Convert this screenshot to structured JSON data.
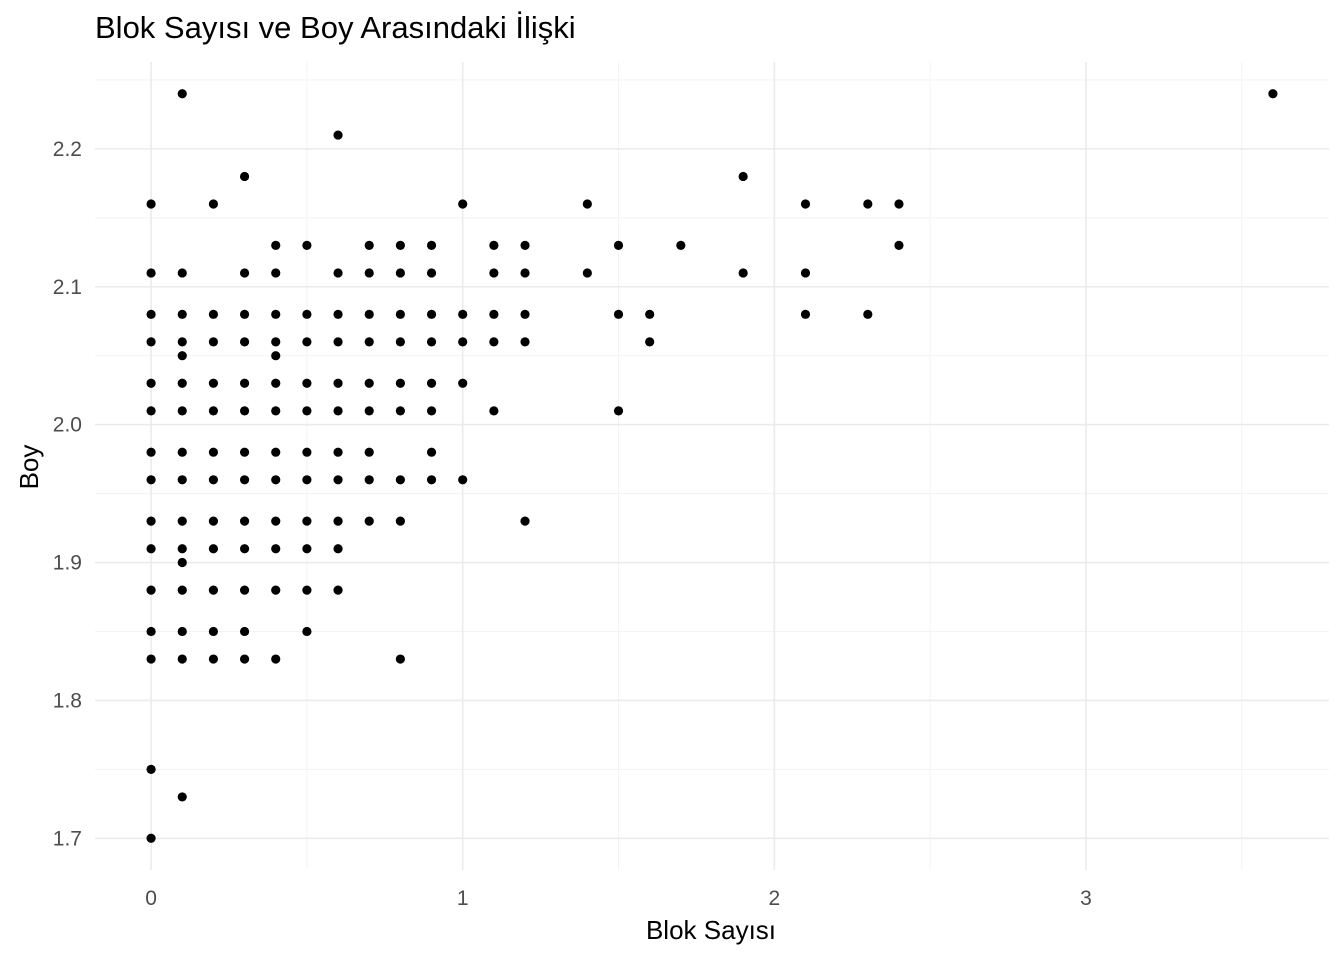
{
  "chart_data": {
    "type": "scatter",
    "title": "Blok Sayısı ve Boy Arasındaki İlişki",
    "xlabel": "Blok Sayısı",
    "ylabel": "Boy",
    "xlim": [
      -0.18,
      3.78
    ],
    "ylim": [
      1.677,
      2.263
    ],
    "x_ticks": [
      0,
      1,
      2,
      3
    ],
    "x_tick_labels": [
      "0",
      "1",
      "2",
      "3"
    ],
    "y_ticks": [
      1.7,
      1.8,
      1.9,
      2.0,
      2.1,
      2.2
    ],
    "y_tick_labels": [
      "1.7",
      "1.8",
      "1.9",
      "2.0",
      "2.1",
      "2.2"
    ],
    "grid": true,
    "legend": "none",
    "point_color": "#000000",
    "points": [
      [
        0,
        1.7
      ],
      [
        0,
        1.75
      ],
      [
        0,
        1.83
      ],
      [
        0,
        1.85
      ],
      [
        0,
        1.88
      ],
      [
        0,
        1.91
      ],
      [
        0,
        1.93
      ],
      [
        0,
        1.96
      ],
      [
        0,
        1.98
      ],
      [
        0,
        2.01
      ],
      [
        0,
        2.03
      ],
      [
        0,
        2.06
      ],
      [
        0,
        2.08
      ],
      [
        0,
        2.11
      ],
      [
        0,
        2.16
      ],
      [
        0.1,
        1.73
      ],
      [
        0.1,
        1.83
      ],
      [
        0.1,
        1.85
      ],
      [
        0.1,
        1.88
      ],
      [
        0.1,
        1.9
      ],
      [
        0.1,
        1.91
      ],
      [
        0.1,
        1.93
      ],
      [
        0.1,
        1.96
      ],
      [
        0.1,
        1.98
      ],
      [
        0.1,
        2.01
      ],
      [
        0.1,
        2.03
      ],
      [
        0.1,
        2.05
      ],
      [
        0.1,
        2.06
      ],
      [
        0.1,
        2.08
      ],
      [
        0.1,
        2.11
      ],
      [
        0.1,
        2.24
      ],
      [
        0.2,
        1.83
      ],
      [
        0.2,
        1.85
      ],
      [
        0.2,
        1.88
      ],
      [
        0.2,
        1.91
      ],
      [
        0.2,
        1.93
      ],
      [
        0.2,
        1.96
      ],
      [
        0.2,
        1.98
      ],
      [
        0.2,
        2.01
      ],
      [
        0.2,
        2.03
      ],
      [
        0.2,
        2.06
      ],
      [
        0.2,
        2.08
      ],
      [
        0.2,
        2.16
      ],
      [
        0.3,
        1.83
      ],
      [
        0.3,
        1.85
      ],
      [
        0.3,
        1.88
      ],
      [
        0.3,
        1.91
      ],
      [
        0.3,
        1.93
      ],
      [
        0.3,
        1.96
      ],
      [
        0.3,
        1.98
      ],
      [
        0.3,
        2.01
      ],
      [
        0.3,
        2.03
      ],
      [
        0.3,
        2.06
      ],
      [
        0.3,
        2.08
      ],
      [
        0.3,
        2.11
      ],
      [
        0.3,
        2.18
      ],
      [
        0.4,
        1.83
      ],
      [
        0.4,
        1.88
      ],
      [
        0.4,
        1.91
      ],
      [
        0.4,
        1.93
      ],
      [
        0.4,
        1.96
      ],
      [
        0.4,
        1.98
      ],
      [
        0.4,
        2.01
      ],
      [
        0.4,
        2.03
      ],
      [
        0.4,
        2.05
      ],
      [
        0.4,
        2.06
      ],
      [
        0.4,
        2.08
      ],
      [
        0.4,
        2.11
      ],
      [
        0.4,
        2.13
      ],
      [
        0.5,
        1.85
      ],
      [
        0.5,
        1.88
      ],
      [
        0.5,
        1.91
      ],
      [
        0.5,
        1.93
      ],
      [
        0.5,
        1.96
      ],
      [
        0.5,
        1.98
      ],
      [
        0.5,
        2.01
      ],
      [
        0.5,
        2.03
      ],
      [
        0.5,
        2.06
      ],
      [
        0.5,
        2.08
      ],
      [
        0.5,
        2.13
      ],
      [
        0.6,
        1.88
      ],
      [
        0.6,
        1.91
      ],
      [
        0.6,
        1.93
      ],
      [
        0.6,
        1.96
      ],
      [
        0.6,
        1.98
      ],
      [
        0.6,
        2.01
      ],
      [
        0.6,
        2.03
      ],
      [
        0.6,
        2.06
      ],
      [
        0.6,
        2.08
      ],
      [
        0.6,
        2.11
      ],
      [
        0.6,
        2.21
      ],
      [
        0.7,
        1.93
      ],
      [
        0.7,
        1.96
      ],
      [
        0.7,
        1.98
      ],
      [
        0.7,
        2.01
      ],
      [
        0.7,
        2.03
      ],
      [
        0.7,
        2.06
      ],
      [
        0.7,
        2.08
      ],
      [
        0.7,
        2.11
      ],
      [
        0.7,
        2.13
      ],
      [
        0.8,
        1.83
      ],
      [
        0.8,
        1.93
      ],
      [
        0.8,
        1.96
      ],
      [
        0.8,
        2.01
      ],
      [
        0.8,
        2.03
      ],
      [
        0.8,
        2.06
      ],
      [
        0.8,
        2.08
      ],
      [
        0.8,
        2.11
      ],
      [
        0.8,
        2.13
      ],
      [
        0.9,
        1.96
      ],
      [
        0.9,
        1.98
      ],
      [
        0.9,
        2.01
      ],
      [
        0.9,
        2.03
      ],
      [
        0.9,
        2.06
      ],
      [
        0.9,
        2.08
      ],
      [
        0.9,
        2.11
      ],
      [
        0.9,
        2.13
      ],
      [
        1.0,
        1.96
      ],
      [
        1.0,
        2.03
      ],
      [
        1.0,
        2.06
      ],
      [
        1.0,
        2.08
      ],
      [
        1.0,
        2.16
      ],
      [
        1.1,
        2.01
      ],
      [
        1.1,
        2.06
      ],
      [
        1.1,
        2.08
      ],
      [
        1.1,
        2.11
      ],
      [
        1.1,
        2.13
      ],
      [
        1.2,
        1.93
      ],
      [
        1.2,
        2.06
      ],
      [
        1.2,
        2.08
      ],
      [
        1.2,
        2.11
      ],
      [
        1.2,
        2.13
      ],
      [
        1.4,
        2.11
      ],
      [
        1.4,
        2.16
      ],
      [
        1.5,
        2.01
      ],
      [
        1.5,
        2.08
      ],
      [
        1.5,
        2.13
      ],
      [
        1.6,
        2.06
      ],
      [
        1.6,
        2.08
      ],
      [
        1.7,
        2.13
      ],
      [
        1.9,
        2.11
      ],
      [
        1.9,
        2.18
      ],
      [
        2.1,
        2.08
      ],
      [
        2.1,
        2.11
      ],
      [
        2.1,
        2.16
      ],
      [
        2.3,
        2.08
      ],
      [
        2.3,
        2.16
      ],
      [
        2.4,
        2.13
      ],
      [
        2.4,
        2.16
      ],
      [
        3.6,
        2.24
      ]
    ]
  }
}
